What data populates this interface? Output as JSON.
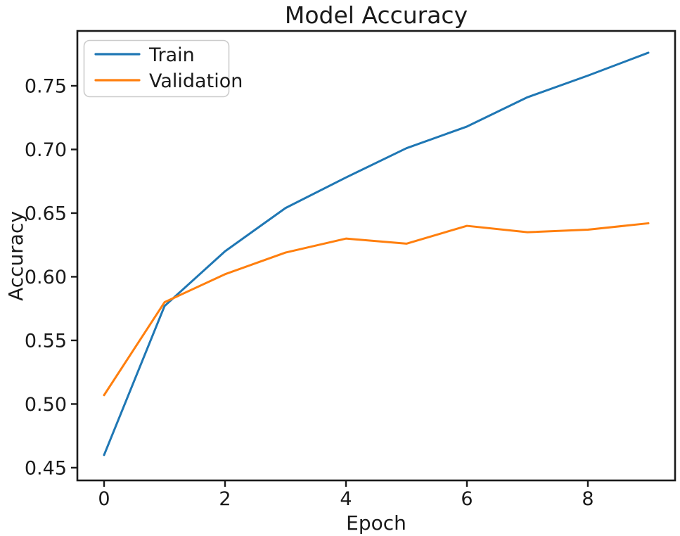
{
  "figure": {
    "background": "#ffffff",
    "text_color": "#1a1a1a",
    "spine_color": "#1a1a1a"
  },
  "chart_data": {
    "type": "line",
    "title": "Model Accuracy",
    "xlabel": "Epoch",
    "ylabel": "Accuracy",
    "x": [
      0,
      1,
      2,
      3,
      4,
      5,
      6,
      7,
      8,
      9
    ],
    "series": [
      {
        "name": "Train",
        "color": "#1f77b4",
        "values": [
          0.46,
          0.577,
          0.62,
          0.654,
          0.678,
          0.701,
          0.718,
          0.741,
          0.758,
          0.776
        ]
      },
      {
        "name": "Validation",
        "color": "#ff7f0e",
        "values": [
          0.507,
          0.58,
          0.602,
          0.619,
          0.63,
          0.626,
          0.64,
          0.635,
          0.637,
          0.642
        ]
      }
    ],
    "xlim": [
      -0.442,
      9.442
    ],
    "ylim": [
      0.44,
      0.7931
    ],
    "xticks": {
      "values": [
        0,
        2,
        4,
        6,
        8
      ],
      "labels": [
        "0",
        "2",
        "4",
        "6",
        "8"
      ]
    },
    "yticks": {
      "values": [
        0.45,
        0.5,
        0.55,
        0.6,
        0.65,
        0.7,
        0.75
      ],
      "labels": [
        "0.45",
        "0.50",
        "0.55",
        "0.60",
        "0.65",
        "0.70",
        "0.75"
      ]
    },
    "legend": {
      "position": "upper left",
      "entries": [
        "Train",
        "Validation"
      ]
    },
    "grid": false
  }
}
